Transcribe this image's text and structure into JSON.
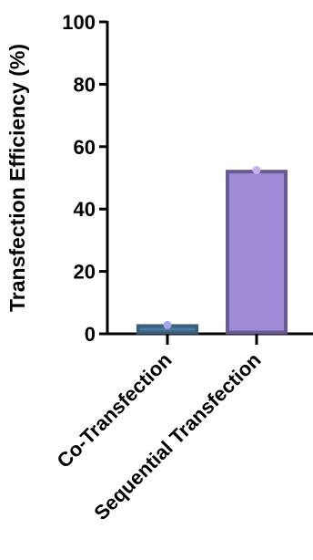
{
  "chart_data": {
    "type": "bar",
    "title": "",
    "xlabel": "",
    "ylabel": "Transfection Efficiency (%)",
    "ylim": [
      0,
      100
    ],
    "yticks": [
      0,
      20,
      40,
      60,
      80,
      100
    ],
    "categories": [
      "Co-Transfection",
      "Sequential Transfection"
    ],
    "values": [
      2.5,
      52
    ],
    "points": [
      2.8,
      52.5
    ],
    "grid": false,
    "legend": "none",
    "colors": {
      "bars_fill": [
        "#4a7da0",
        "#a08cd6"
      ],
      "bars_stroke": [
        "#3d5f80",
        "#6a5a94"
      ],
      "points": [
        "#9fa8e8",
        "#c6b0ec"
      ],
      "axis": "#000000"
    }
  }
}
